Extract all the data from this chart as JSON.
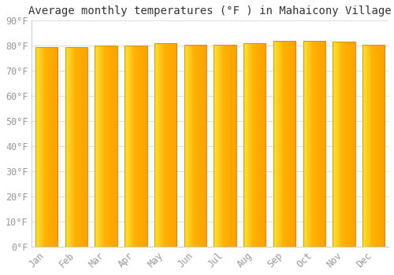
{
  "title": "Average monthly temperatures (°F ) in Mahaicony Village",
  "months": [
    "Jan",
    "Feb",
    "Mar",
    "Apr",
    "May",
    "Jun",
    "Jul",
    "Aug",
    "Sep",
    "Oct",
    "Nov",
    "Dec"
  ],
  "values": [
    79.5,
    79.5,
    80.0,
    80.0,
    81.0,
    80.5,
    80.5,
    81.0,
    82.0,
    82.0,
    81.5,
    80.5
  ],
  "ylim": [
    0,
    90
  ],
  "yticks": [
    0,
    10,
    20,
    30,
    40,
    50,
    60,
    70,
    80,
    90
  ],
  "ytick_labels": [
    "0°F",
    "10°F",
    "20°F",
    "30°F",
    "40°F",
    "50°F",
    "60°F",
    "70°F",
    "80°F",
    "90°F"
  ],
  "bar_color_bottom": "#FFB300",
  "bar_color_top": "#FFCC44",
  "bar_color_left_highlight": "#FFD966",
  "bar_edge_color": "#CC8800",
  "background_color": "#FFFFFF",
  "grid_color": "#DDDDDD",
  "title_fontsize": 10,
  "tick_fontsize": 8.5,
  "tick_color": "#999999",
  "title_color": "#333333",
  "font_family": "monospace"
}
